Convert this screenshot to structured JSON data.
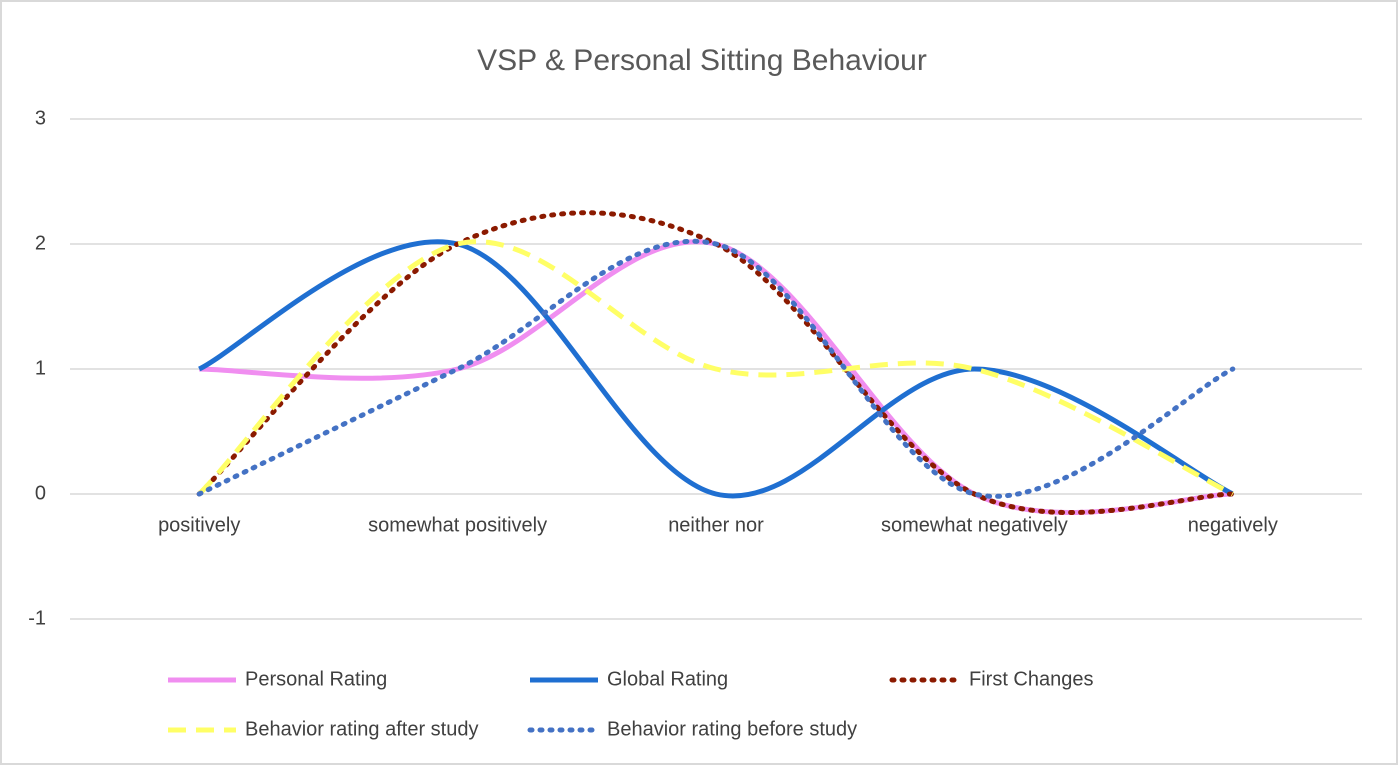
{
  "chart_data": {
    "type": "line",
    "title": "VSP & Personal Sitting Behaviour",
    "categories": [
      "positively",
      "somewhat positively",
      "neither nor",
      "somewhat negatively",
      "negatively"
    ],
    "series": [
      {
        "name": "Personal Rating",
        "color": "#f08ef0",
        "style": "solid",
        "values": [
          1,
          1,
          2,
          0,
          0
        ]
      },
      {
        "name": "Global Rating",
        "color": "#1f6fd1",
        "style": "solid",
        "values": [
          1,
          2,
          0,
          1,
          0
        ]
      },
      {
        "name": "First Changes",
        "color": "#8b1a00",
        "style": "dotted",
        "values": [
          0,
          2,
          2,
          0,
          0
        ]
      },
      {
        "name": "Behavior rating after study",
        "color": "#ffff66",
        "style": "dashed",
        "values": [
          0,
          2,
          1,
          1,
          0
        ]
      },
      {
        "name": "Behavior rating before study",
        "color": "#4472c4",
        "style": "dotted",
        "values": [
          0,
          1,
          2,
          0,
          1
        ]
      }
    ],
    "ylim": [
      -1,
      3
    ],
    "yticks": [
      -1,
      0,
      1,
      2,
      3
    ],
    "grid": true,
    "smooth": true,
    "legend": "bottom"
  }
}
